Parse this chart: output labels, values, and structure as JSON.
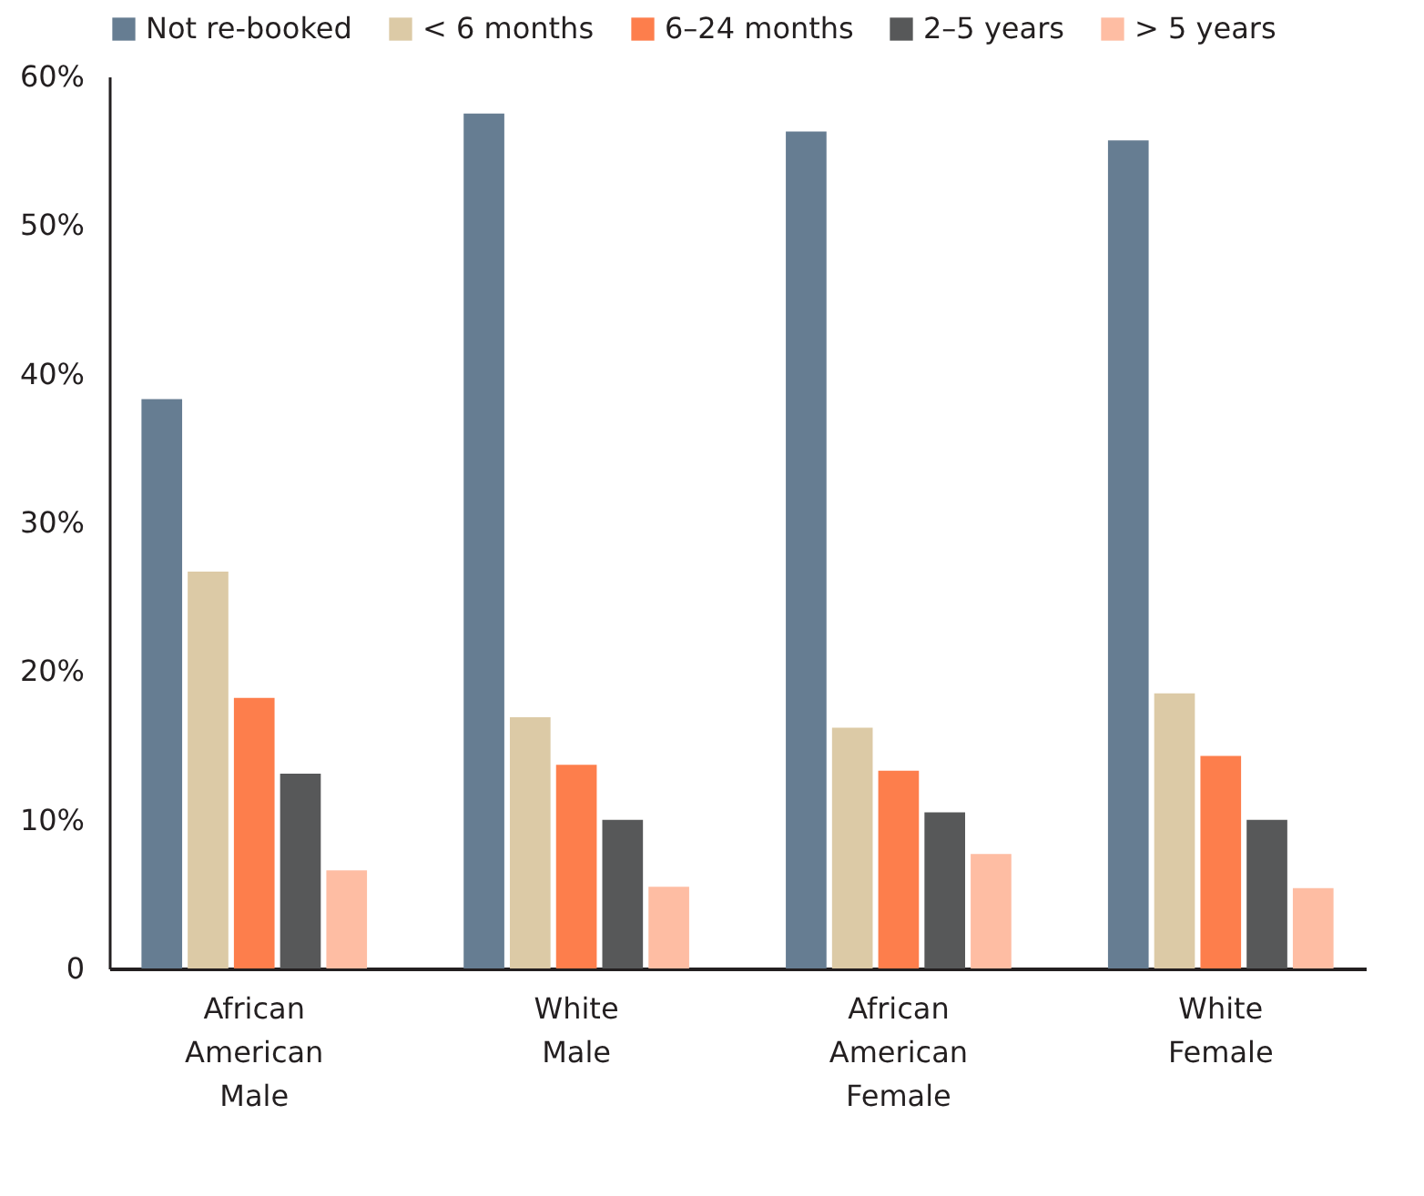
{
  "chart_data": {
    "type": "bar",
    "categories": [
      "African American Male",
      "White Male",
      "African American Female",
      "White Female"
    ],
    "series": [
      {
        "name": "Not re-booked",
        "color": "#667d92",
        "values": [
          38.3,
          57.5,
          56.3,
          55.7
        ]
      },
      {
        "name": "< 6 months",
        "color": "#dccaa6",
        "values": [
          26.7,
          16.9,
          16.2,
          18.5
        ]
      },
      {
        "name": "6–24 months",
        "color": "#fd7e4c",
        "values": [
          18.2,
          13.7,
          13.3,
          14.3
        ]
      },
      {
        "name": "2–5 years",
        "color": "#575859",
        "values": [
          13.1,
          10.0,
          10.5,
          10.0
        ]
      },
      {
        "name": "> 5 years",
        "color": "#febda3",
        "values": [
          6.6,
          5.5,
          7.7,
          5.4
        ]
      }
    ],
    "ylim": [
      0,
      60
    ],
    "yticks": [
      {
        "value": 0,
        "label": "0"
      },
      {
        "value": 10,
        "label": "10%"
      },
      {
        "value": 20,
        "label": "20%"
      },
      {
        "value": 30,
        "label": "30%"
      },
      {
        "value": 40,
        "label": "40%"
      },
      {
        "value": 50,
        "label": "50%"
      },
      {
        "value": 60,
        "label": "60%"
      }
    ],
    "grid": false,
    "legend": "top left"
  }
}
